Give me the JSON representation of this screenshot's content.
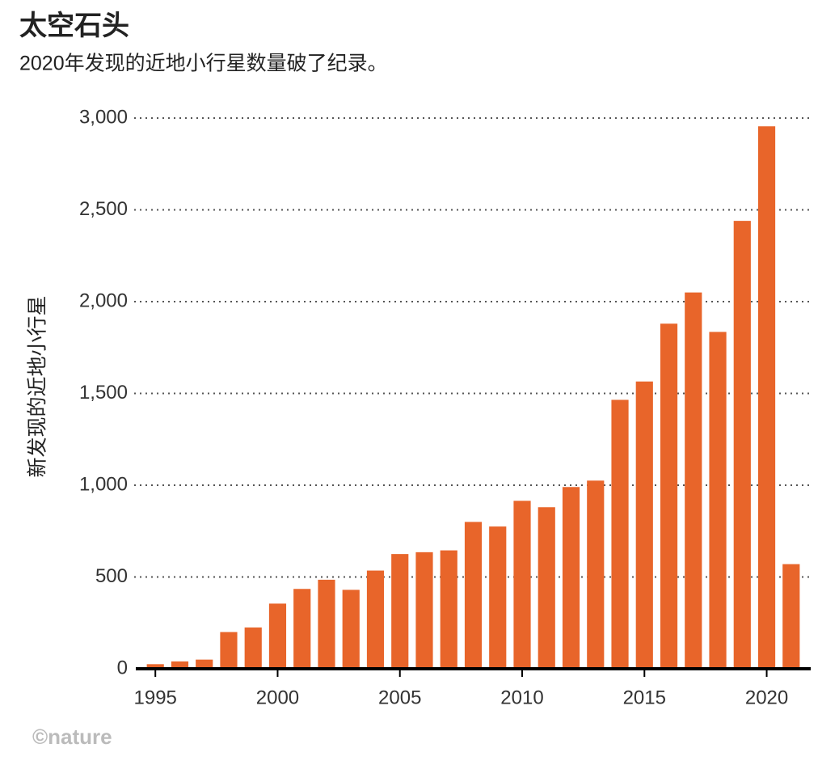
{
  "chart_data": {
    "type": "bar",
    "title": "太空石头",
    "subtitle": "2020年发现的近地小行星数量破了纪录。",
    "y_label": "新发现的近地小行星",
    "source": "©nature",
    "color": "#e8652a",
    "x": [
      1995,
      1996,
      1997,
      1998,
      1999,
      2000,
      2001,
      2002,
      2003,
      2004,
      2005,
      2006,
      2007,
      2008,
      2009,
      2010,
      2011,
      2012,
      2013,
      2014,
      2015,
      2016,
      2017,
      2018,
      2019,
      2020,
      2021
    ],
    "values": [
      25,
      40,
      50,
      200,
      225,
      355,
      435,
      485,
      430,
      535,
      625,
      635,
      645,
      800,
      775,
      915,
      880,
      990,
      1025,
      1465,
      1565,
      1880,
      2050,
      1835,
      2440,
      2955,
      570
    ],
    "xlim": [
      1994.2,
      2021.8
    ],
    "xticks": [
      1995,
      2000,
      2005,
      2010,
      2015,
      2020
    ],
    "ylim": [
      0,
      3000
    ],
    "yticks": [
      0,
      500,
      {
        "value": 1000,
        "label": "1,000"
      },
      {
        "value": 1500,
        "label": "1,500"
      },
      {
        "value": 2000,
        "label": "2,000"
      },
      {
        "value": 2500,
        "label": "2,500"
      },
      {
        "value": 3000,
        "label": "3,000"
      }
    ],
    "grid": true
  }
}
